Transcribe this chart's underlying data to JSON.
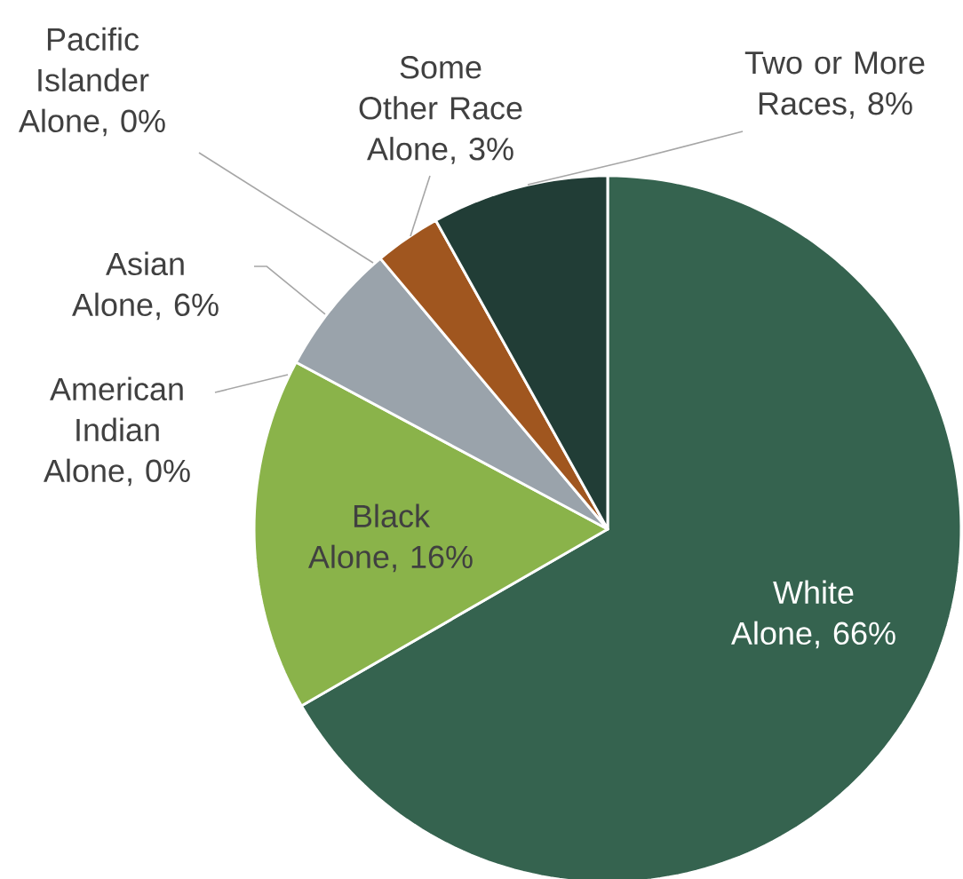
{
  "chart_data": {
    "type": "pie",
    "categories": [
      "White Alone, 66%",
      "Black Alone, 16%",
      "American Indian Alone, 0%",
      "Asian Alone, 6%",
      "Pacific Islander Alone, 0%",
      "Some Other Race Alone, 3%",
      "Two or More Races, 8%"
    ],
    "values": [
      66,
      16,
      0,
      6,
      0,
      3,
      8
    ],
    "colors": [
      "#35634f",
      "#8ab34a",
      "#c5d9a0",
      "#9aa3ab",
      "#b8c7d9",
      "#a0561f",
      "#213d36"
    ]
  }
}
